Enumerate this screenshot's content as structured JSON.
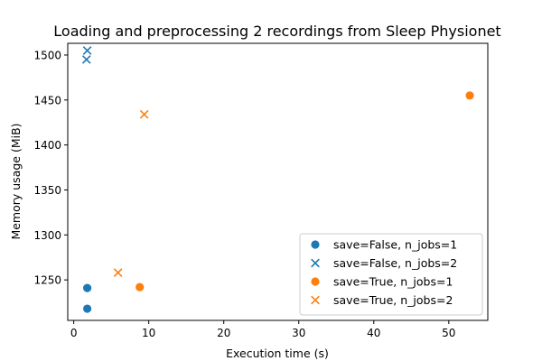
{
  "chart_data": {
    "type": "scatter",
    "title": "Loading and preprocessing 2 recordings from Sleep Physionet",
    "xlabel": "Execution time (s)",
    "ylabel": "Memory usage (MiB)",
    "xlim": [
      -0.8,
      55.2
    ],
    "ylim": [
      1205,
      1513
    ],
    "xticks": [
      0,
      10,
      20,
      30,
      40,
      50
    ],
    "yticks": [
      1250,
      1300,
      1350,
      1400,
      1450,
      1500
    ],
    "grid": false,
    "legend_position": "lower-right",
    "series": [
      {
        "name": "save=False, n_jobs=1",
        "marker": "circle",
        "color": "#1f77b4",
        "points": [
          [
            1.8,
            1241
          ],
          [
            1.8,
            1218
          ]
        ]
      },
      {
        "name": "save=False, n_jobs=2",
        "marker": "x",
        "color": "#1f77b4",
        "points": [
          [
            1.8,
            1505
          ],
          [
            1.7,
            1495
          ]
        ]
      },
      {
        "name": "save=True, n_jobs=1",
        "marker": "circle",
        "color": "#ff7f0e",
        "points": [
          [
            52.8,
            1455
          ],
          [
            8.8,
            1242
          ]
        ]
      },
      {
        "name": "save=True, n_jobs=2",
        "marker": "x",
        "color": "#ff7f0e",
        "points": [
          [
            9.4,
            1434
          ],
          [
            5.9,
            1258
          ]
        ]
      }
    ]
  }
}
